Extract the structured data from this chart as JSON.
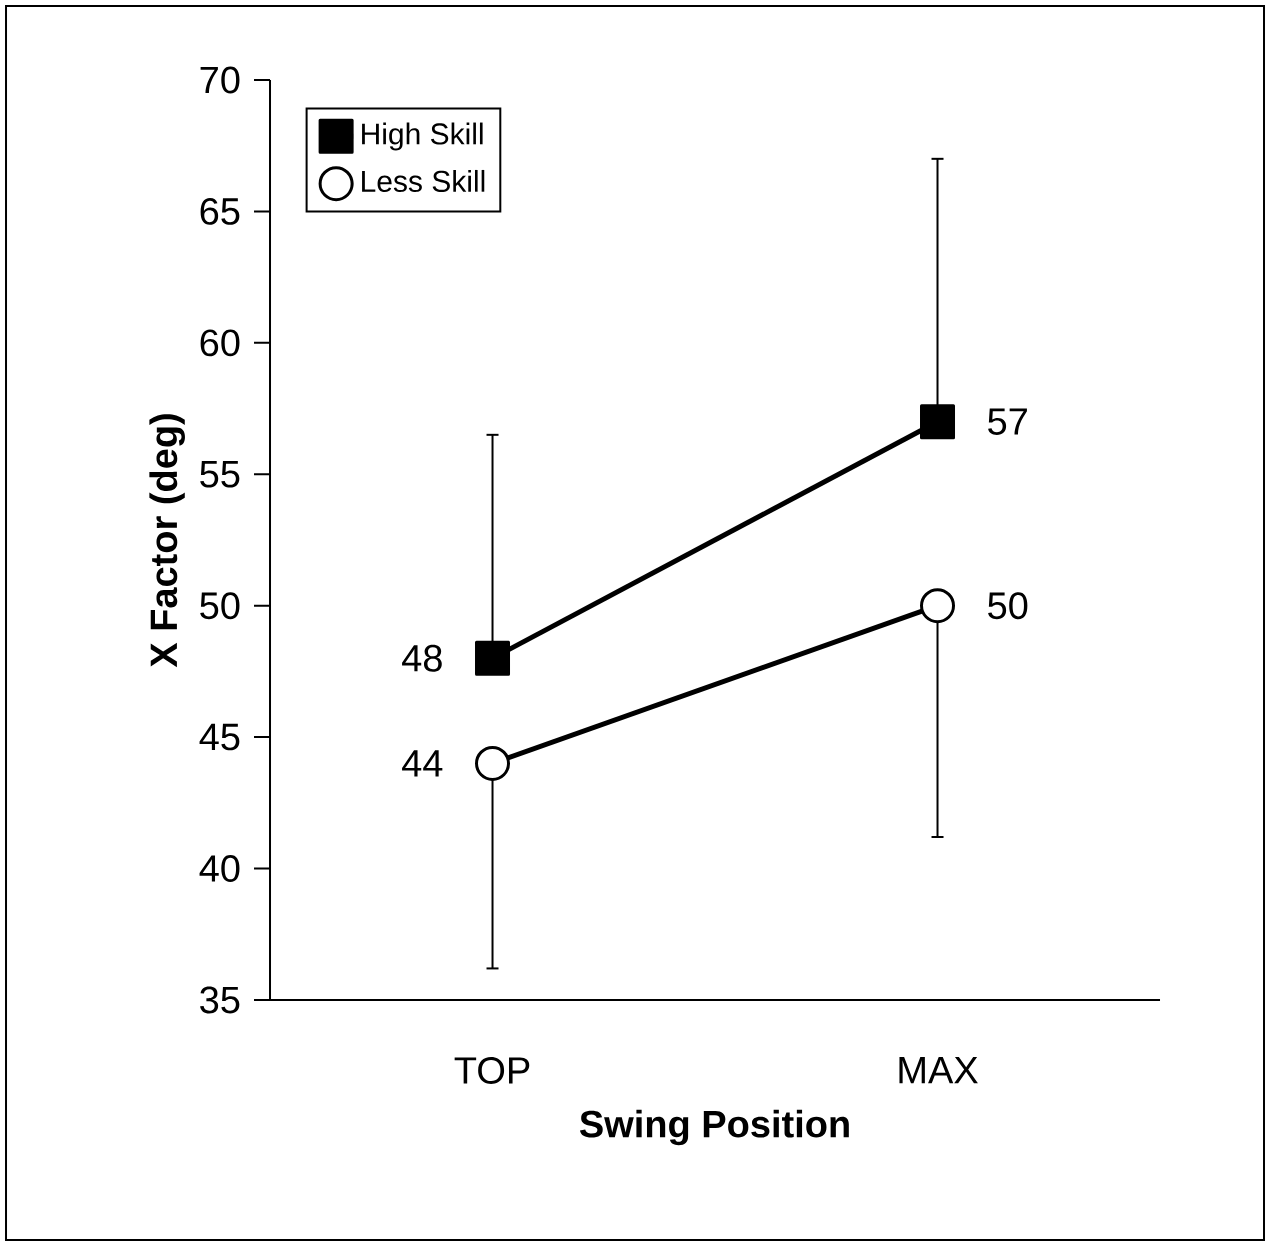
{
  "chart_data": {
    "type": "line",
    "xlabel": "Swing Position",
    "ylabel": "X Factor (deg)",
    "categories": [
      "TOP",
      "MAX"
    ],
    "series": [
      {
        "name": "High Skill",
        "color": "#000000",
        "marker": "square",
        "values": [
          48,
          57
        ],
        "errors": [
          [
            48,
            56.5
          ],
          [
            57,
            67
          ]
        ]
      },
      {
        "name": "Less Skill",
        "color": "#000000",
        "marker": "circle",
        "values": [
          44,
          50
        ],
        "errors": [
          [
            36.2,
            44
          ],
          [
            41.2,
            50
          ]
        ]
      }
    ],
    "ylim": [
      35,
      70
    ],
    "yticks": [
      35,
      40,
      45,
      50,
      55,
      60,
      65,
      70
    ],
    "data_labels": true,
    "legend": "top left",
    "grid": false,
    "line_style": "solid"
  }
}
